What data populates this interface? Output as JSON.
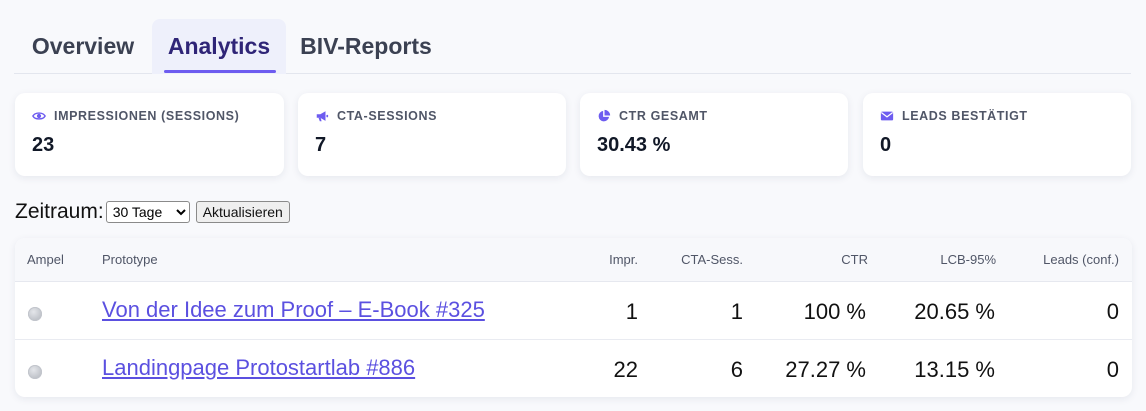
{
  "tabs": [
    {
      "label": "Overview"
    },
    {
      "label": "Analytics"
    },
    {
      "label": "BIV-Reports"
    }
  ],
  "kpis": [
    {
      "icon": "eye-icon",
      "label": "IMPRESSIONEN (SESSIONS)",
      "value": "23"
    },
    {
      "icon": "megaphone-icon",
      "label": "CTA-SESSIONS",
      "value": "7"
    },
    {
      "icon": "pie-chart-icon",
      "label": "CTR GESAMT",
      "value": "30.43 %"
    },
    {
      "icon": "envelope-icon",
      "label": "LEADS BESTÄTIGT",
      "value": "0"
    }
  ],
  "controls": {
    "period_label": "Zeitraum:",
    "period_value": "30 Tage",
    "refresh_label": "Aktualisieren"
  },
  "table": {
    "headers": {
      "ampel": "Ampel",
      "prototype": "Prototype",
      "impr": "Impr.",
      "cta": "CTA-Sess.",
      "ctr": "CTR",
      "lcb": "LCB-95%",
      "leads": "Leads (conf.)"
    },
    "rows": [
      {
        "prototype": "Von der Idee zum Proof – E-Book #325",
        "impr": "1",
        "cta": "1",
        "ctr": "100 %",
        "lcb": "20.65 %",
        "leads": "0"
      },
      {
        "prototype": "Landingpage Protostartlab #886",
        "impr": "22",
        "cta": "6",
        "ctr": "27.27 %",
        "lcb": "13.15 %",
        "leads": "0"
      }
    ]
  },
  "colors": {
    "accent": "#6d5cf0",
    "link": "#5b50e0",
    "active_tab_bg": "#eef0fb"
  }
}
